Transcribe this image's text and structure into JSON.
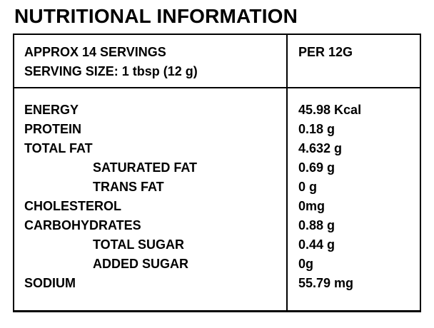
{
  "title": "NUTRITIONAL INFORMATION",
  "table": {
    "header": {
      "servings_line": "APPROX 14 SERVINGS",
      "serving_size_line": "SERVING SIZE: 1 tbsp (12 g)",
      "per_column": "PER 12G"
    },
    "rows": [
      {
        "label": "ENERGY",
        "value": "45.98 Kcal",
        "indent": false
      },
      {
        "label": "PROTEIN",
        "value": "0.18 g",
        "indent": false
      },
      {
        "label": "TOTAL FAT",
        "value": "4.632 g",
        "indent": false
      },
      {
        "label": "SATURATED FAT",
        "value": "0.69 g",
        "indent": true
      },
      {
        "label": "TRANS FAT",
        "value": "0 g",
        "indent": true
      },
      {
        "label": "CHOLESTEROL",
        "value": "0mg",
        "indent": false
      },
      {
        "label": "CARBOHYDRATES",
        "value": "0.88 g",
        "indent": false
      },
      {
        "label": "TOTAL SUGAR",
        "value": "0.44 g",
        "indent": true
      },
      {
        "label": "ADDED SUGAR",
        "value": "0g",
        "indent": true
      },
      {
        "label": "SODIUM",
        "value": "55.79 mg",
        "indent": false
      }
    ]
  },
  "colors": {
    "text": "#000000",
    "background": "#ffffff",
    "border": "#000000"
  }
}
